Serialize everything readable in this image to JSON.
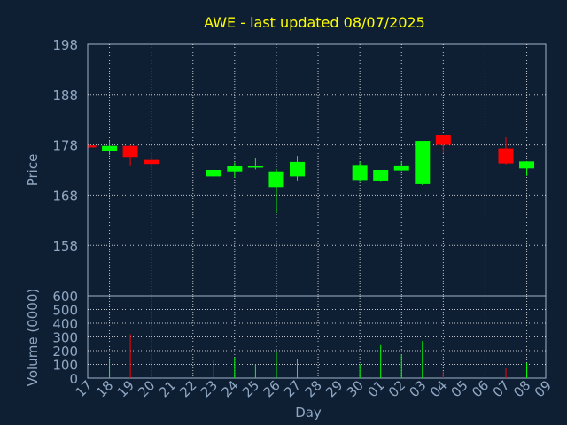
{
  "chart_data": {
    "type": "candlestick",
    "title": "AWE - last updated 08/07/2025",
    "xlabel": "Day",
    "x_ticks": [
      "17",
      "18",
      "19",
      "20",
      "21",
      "22",
      "23",
      "24",
      "25",
      "26",
      "27",
      "28",
      "29",
      "30",
      "01",
      "02",
      "03",
      "04",
      "05",
      "06",
      "07",
      "08",
      "09"
    ],
    "price_axis": {
      "ylabel": "Price",
      "ylim": [
        148,
        198
      ],
      "ticks": [
        "198",
        "188",
        "178",
        "168",
        "158"
      ],
      "grid": true
    },
    "volume_axis": {
      "ylabel": "Volume (0000)",
      "ylim": [
        0,
        600
      ],
      "ticks": [
        "600",
        "500",
        "400",
        "300",
        "200",
        "100",
        "0"
      ],
      "grid": true
    },
    "candles": [
      {
        "day": "17",
        "open": 177.9,
        "close": 177.5,
        "high": 178.0,
        "low": 177.4,
        "volume": 0,
        "color": "red"
      },
      {
        "day": "18",
        "open": 176.8,
        "close": 177.8,
        "high": 178.9,
        "low": 176.0,
        "volume": 130,
        "color": "green"
      },
      {
        "day": "19",
        "open": 177.8,
        "close": 175.6,
        "high": 177.9,
        "low": 173.9,
        "volume": 320,
        "color": "red"
      },
      {
        "day": "20",
        "open": 175.0,
        "close": 174.2,
        "high": 176.5,
        "low": 172.5,
        "volume": 590,
        "color": "red"
      },
      {
        "day": "23",
        "open": 171.7,
        "close": 173.0,
        "high": 173.1,
        "low": 171.6,
        "volume": 130,
        "color": "green"
      },
      {
        "day": "24",
        "open": 172.7,
        "close": 173.8,
        "high": 174.5,
        "low": 171.5,
        "volume": 150,
        "color": "green"
      },
      {
        "day": "25",
        "open": 173.5,
        "close": 173.8,
        "high": 175.3,
        "low": 173.1,
        "volume": 100,
        "color": "green"
      },
      {
        "day": "26",
        "open": 169.6,
        "close": 172.7,
        "high": 173.2,
        "low": 164.4,
        "volume": 190,
        "color": "green"
      },
      {
        "day": "27",
        "open": 171.7,
        "close": 174.6,
        "high": 175.8,
        "low": 170.9,
        "volume": 140,
        "color": "green"
      },
      {
        "day": "30",
        "open": 171.0,
        "close": 174.0,
        "high": 174.6,
        "low": 170.8,
        "volume": 100,
        "color": "green"
      },
      {
        "day": "01",
        "open": 170.9,
        "close": 173.0,
        "high": 173.0,
        "low": 170.8,
        "volume": 240,
        "color": "green"
      },
      {
        "day": "02",
        "open": 172.9,
        "close": 173.9,
        "high": 174.6,
        "low": 172.8,
        "volume": 170,
        "color": "green"
      },
      {
        "day": "03",
        "open": 170.2,
        "close": 178.8,
        "high": 178.8,
        "low": 170.0,
        "volume": 270,
        "color": "green"
      },
      {
        "day": "04",
        "open": 180.0,
        "close": 178.0,
        "high": 180.0,
        "low": 176.3,
        "volume": 50,
        "color": "red"
      },
      {
        "day": "07",
        "open": 177.3,
        "close": 174.3,
        "high": 179.5,
        "low": 174.1,
        "volume": 70,
        "color": "red"
      },
      {
        "day": "08",
        "open": 173.3,
        "close": 174.7,
        "high": 174.7,
        "low": 171.8,
        "volume": 110,
        "color": "green"
      }
    ]
  }
}
